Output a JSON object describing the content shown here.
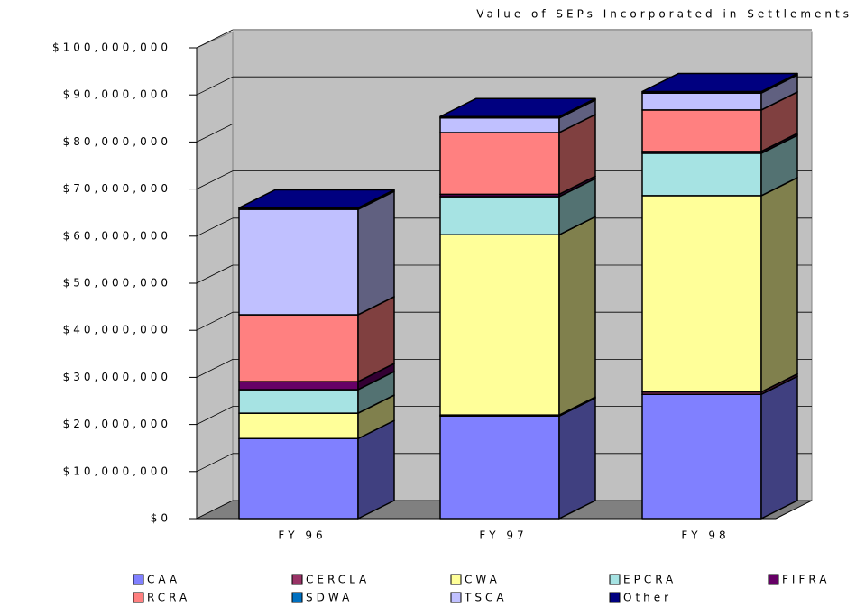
{
  "chart_data": {
    "type": "bar3d_stacked",
    "title": "Value of SEPs Incorporated in Settlements",
    "categories": [
      "FY 96",
      "FY 97",
      "FY 98"
    ],
    "series": [
      {
        "name": "CAA",
        "color": "#8080ff",
        "values": [
          17000000,
          21800000,
          26400000
        ]
      },
      {
        "name": "CERCLA",
        "color": "#993366",
        "values": [
          0,
          200000,
          500000
        ]
      },
      {
        "name": "CWA",
        "color": "#ffff99",
        "values": [
          5400000,
          38300000,
          41700000
        ]
      },
      {
        "name": "EPCRA",
        "color": "#a6e3e3",
        "values": [
          5000000,
          8100000,
          9000000
        ]
      },
      {
        "name": "FIFRA",
        "color": "#660066",
        "values": [
          1700000,
          500000,
          400000
        ]
      },
      {
        "name": "RCRA",
        "color": "#ff8080",
        "values": [
          14200000,
          13100000,
          8800000
        ]
      },
      {
        "name": "SDWA",
        "color": "#0070c0",
        "values": [
          0,
          0,
          0
        ]
      },
      {
        "name": "TSCA",
        "color": "#c0c0ff",
        "values": [
          22400000,
          3100000,
          3600000
        ]
      },
      {
        "name": "Other",
        "color": "#000080",
        "values": [
          300000,
          300000,
          300000
        ]
      }
    ],
    "ylim": [
      0,
      100000000
    ],
    "yticks": [
      {
        "value": 0,
        "label": "$0"
      },
      {
        "value": 10000000,
        "label": "$10,000,000"
      },
      {
        "value": 20000000,
        "label": "$20,000,000"
      },
      {
        "value": 30000000,
        "label": "$30,000,000"
      },
      {
        "value": 40000000,
        "label": "$40,000,000"
      },
      {
        "value": 50000000,
        "label": "$50,000,000"
      },
      {
        "value": 60000000,
        "label": "$60,000,000"
      },
      {
        "value": 70000000,
        "label": "$70,000,000"
      },
      {
        "value": 80000000,
        "label": "$80,000,000"
      },
      {
        "value": 90000000,
        "label": "$90,000,000"
      },
      {
        "value": 100000000,
        "label": "$100,000,000"
      }
    ],
    "grid": true,
    "legend": "bottom"
  }
}
